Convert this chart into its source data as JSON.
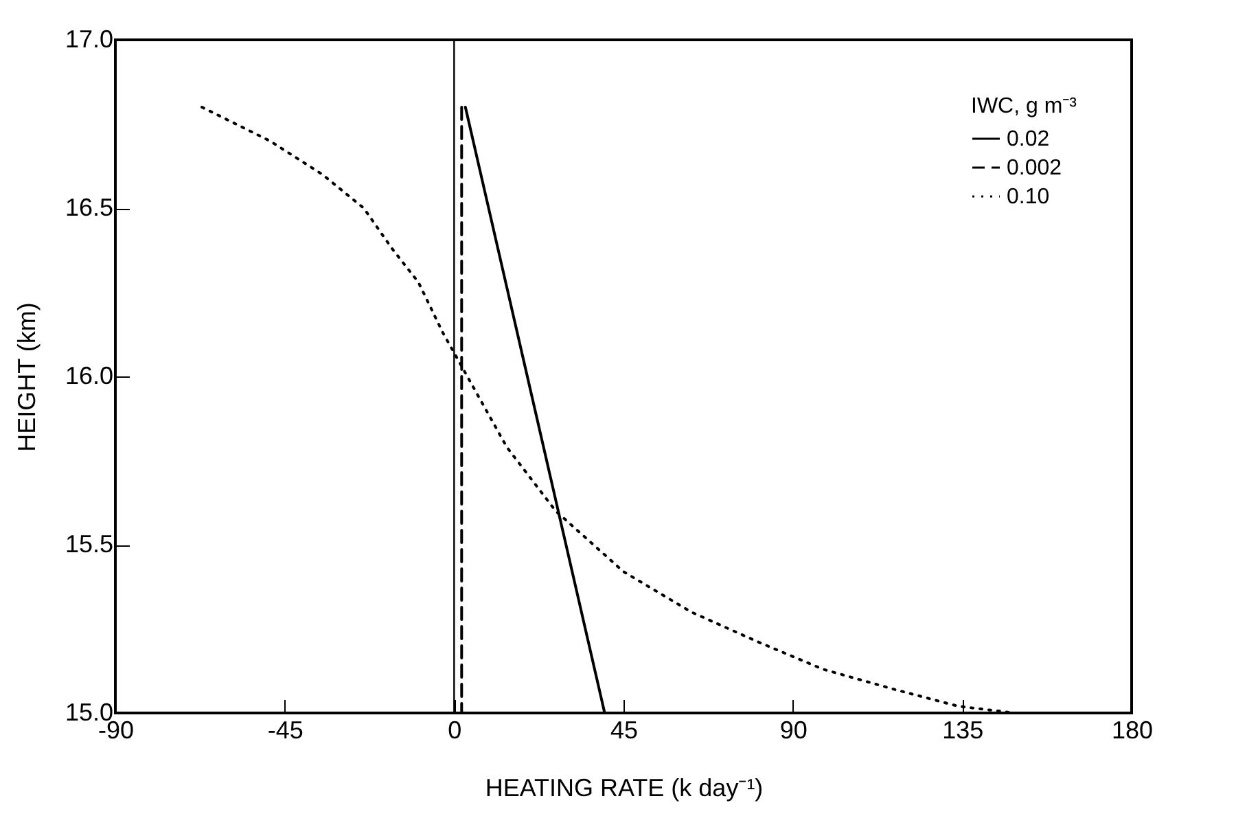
{
  "chart_data": {
    "type": "line",
    "xlabel": "HEATING RATE (k day⁻¹)",
    "ylabel": "HEIGHT (km)",
    "legend_title": "IWC, g m⁻³",
    "legend": "top right",
    "grid": false,
    "marker": "none",
    "xlim": [
      -90,
      180
    ],
    "xticks": [
      -90,
      -45,
      0,
      45,
      90,
      135,
      180
    ],
    "ylim": [
      15,
      17
    ],
    "yticks": [
      {
        "value": 15,
        "label": "15.0"
      },
      {
        "value": 15.5,
        "label": "15.5"
      },
      {
        "value": 16,
        "label": "16.0"
      },
      {
        "value": 16.5,
        "label": "16.5"
      },
      {
        "value": 17,
        "label": "17.0"
      }
    ],
    "ref_lines": [
      {
        "axis": "x",
        "value": 0,
        "color": "#000000",
        "line_style": "solid"
      }
    ],
    "series": [
      {
        "name": "0.02",
        "color": "#000000",
        "line_style": "solid",
        "x": [
          3,
          40
        ],
        "values": [
          16.8,
          15.0
        ]
      },
      {
        "name": "0.002",
        "color": "#000000",
        "line_style": "dashed",
        "x": [
          2,
          2
        ],
        "values": [
          16.8,
          15.0
        ]
      },
      {
        "name": "0.10",
        "color": "#000000",
        "line_style": "dotted",
        "x": [
          -67,
          -49,
          -35,
          -24,
          -16.5,
          -9.5,
          -3,
          4,
          14,
          27,
          45,
          63,
          81,
          98,
          117,
          134,
          149
        ],
        "values": [
          16.8,
          16.7,
          16.6,
          16.5,
          16.38,
          16.28,
          16.13,
          15.99,
          15.79,
          15.6,
          15.42,
          15.3,
          15.21,
          15.13,
          15.07,
          15.02,
          15.0
        ]
      }
    ]
  }
}
